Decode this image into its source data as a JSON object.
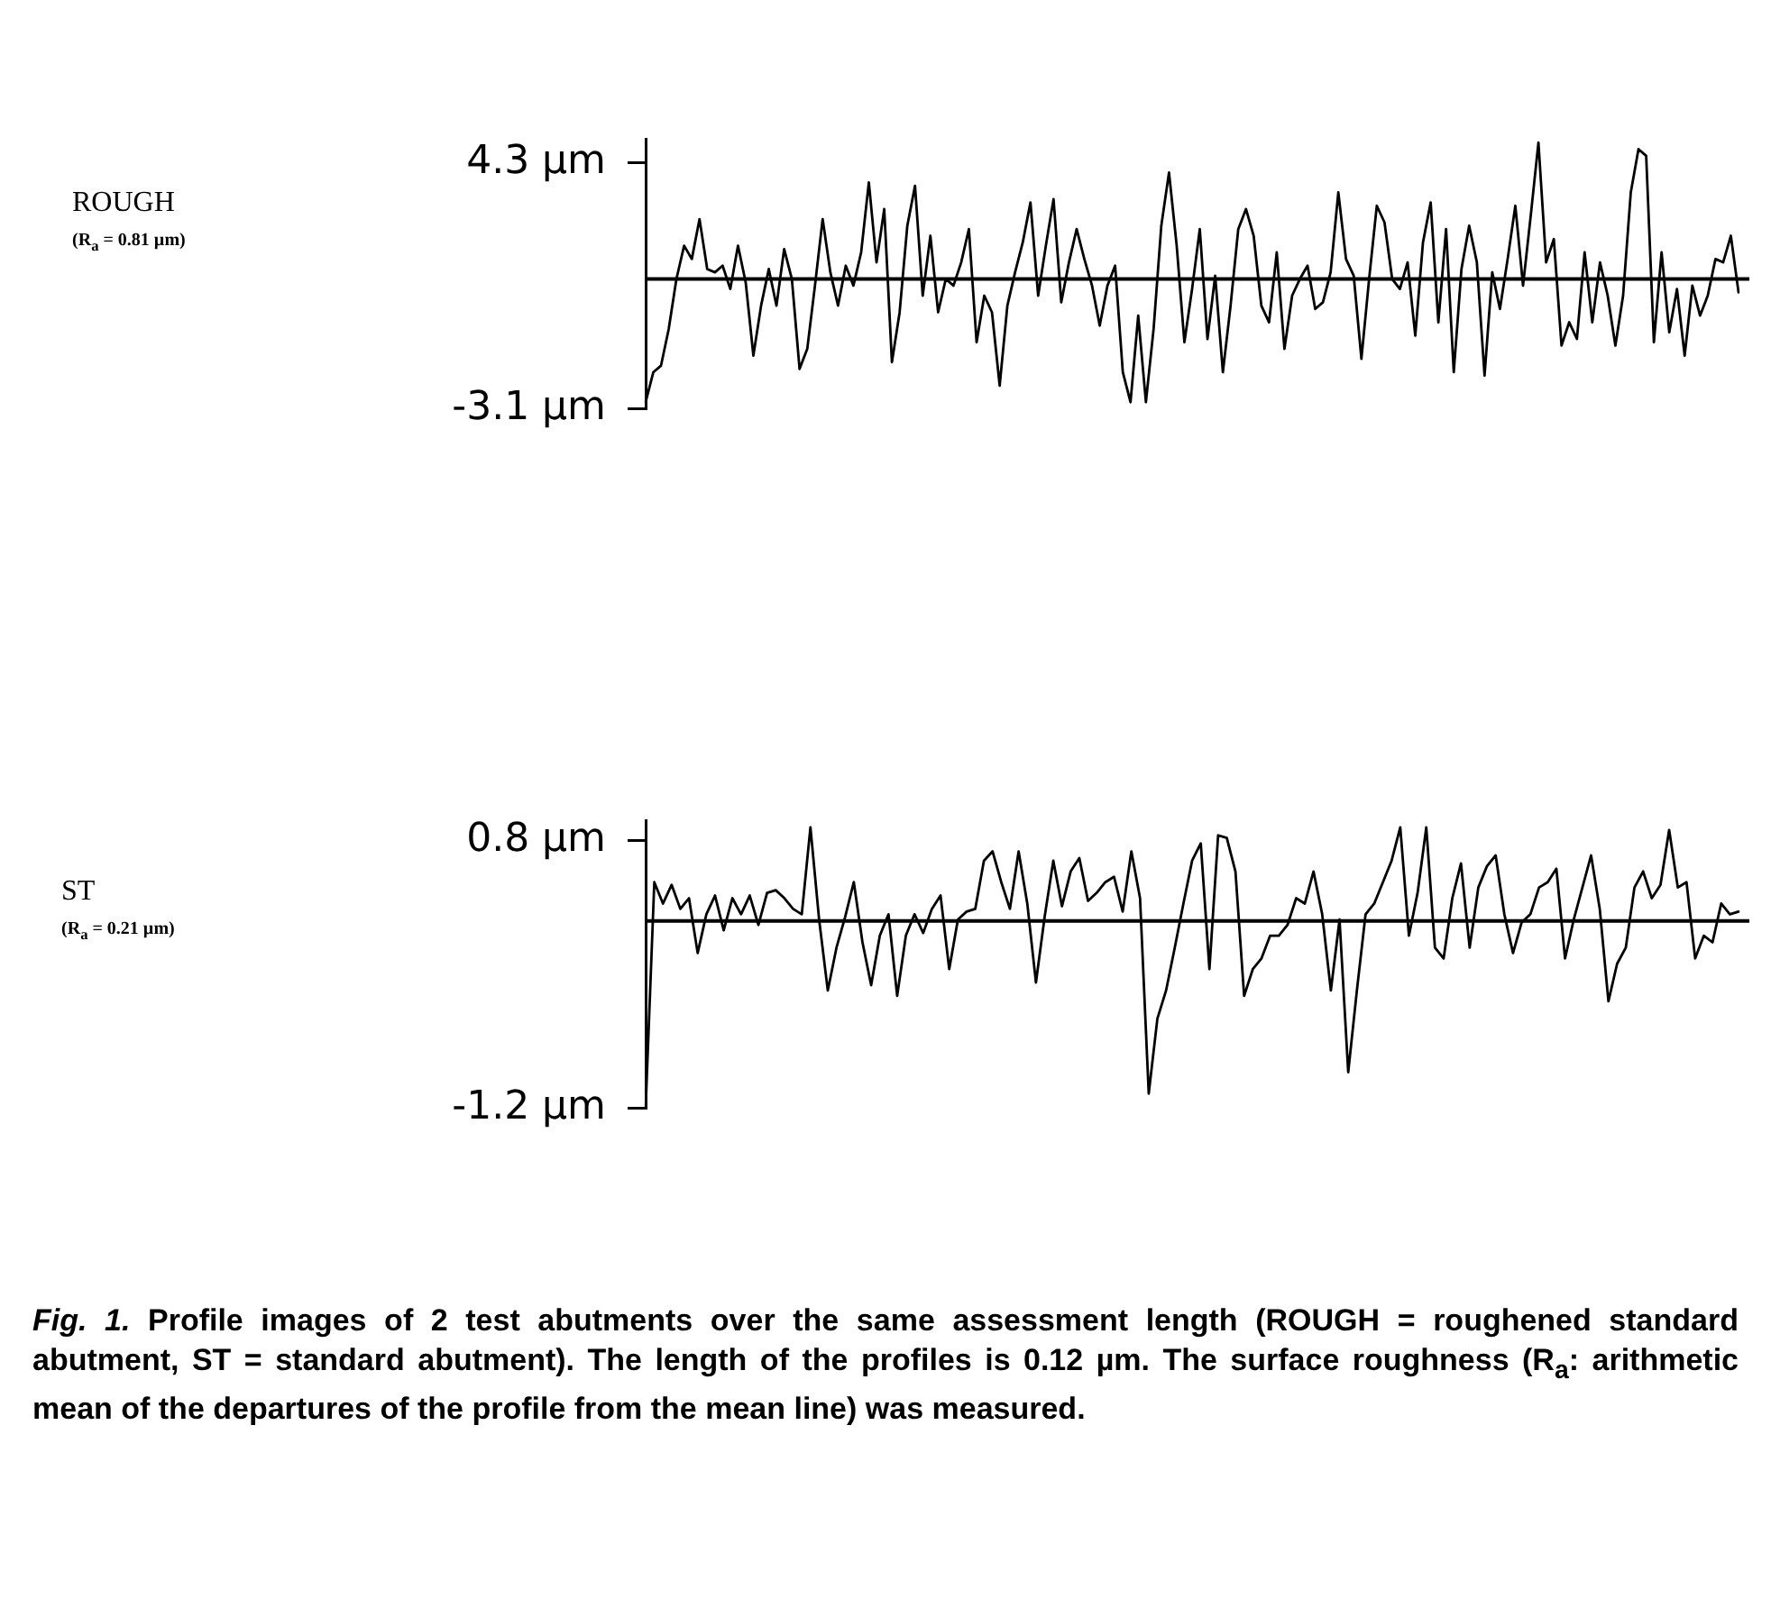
{
  "chart_data": [
    {
      "type": "line",
      "ylabel": "ROUGH\n(R$_{a}$ = 0.81 µm)",
      "categories": [
        null,
        null,
        null,
        null,
        null,
        null,
        null,
        null,
        null,
        null,
        null,
        null,
        null,
        null,
        null,
        null,
        null,
        null,
        null,
        null,
        null,
        null,
        null,
        null,
        null,
        null,
        null,
        null,
        null,
        null,
        null,
        null,
        null,
        null,
        null,
        null,
        null,
        null,
        null,
        null,
        null,
        null,
        null,
        null,
        null,
        null,
        null,
        null,
        null,
        null,
        null,
        null,
        null,
        null,
        null,
        null,
        null,
        null,
        null,
        null,
        null,
        null,
        null,
        null,
        null,
        null,
        null,
        null,
        null,
        null,
        null,
        null,
        null,
        null,
        null,
        null,
        null,
        null,
        null,
        null,
        null,
        null,
        null,
        null,
        null,
        null,
        null,
        null,
        null,
        null,
        null,
        null,
        null,
        null,
        null,
        null,
        null,
        null,
        null,
        null,
        null,
        null,
        null,
        null,
        null,
        null,
        null,
        null,
        null,
        null,
        null,
        null,
        null,
        null,
        null,
        null,
        null,
        null,
        null,
        null,
        null,
        null,
        null,
        null,
        null,
        null,
        null,
        null,
        null,
        null,
        null,
        null,
        null,
        null,
        null,
        null,
        null,
        null,
        null,
        null,
        null,
        null,
        null
      ],
      "values": [
        -2.9,
        -2.0,
        -1.8,
        -0.7,
        0.8,
        1.8,
        1.4,
        2.6,
        1.1,
        1.0,
        1.2,
        0.5,
        1.8,
        0.7,
        -1.5,
        0.0,
        1.1,
        0.0,
        1.7,
        0.8,
        -1.9,
        -1.3,
        0.6,
        2.6,
        1.0,
        0.0,
        1.2,
        0.6,
        1.6,
        3.7,
        1.3,
        2.9,
        -1.7,
        -0.2,
        2.4,
        3.6,
        0.3,
        2.1,
        -0.2,
        0.8,
        0.6,
        1.3,
        2.3,
        -1.1,
        0.3,
        -0.2,
        -2.4,
        0.0,
        1.0,
        1.9,
        3.1,
        0.3,
        1.8,
        3.2,
        0.1,
        1.3,
        2.3,
        1.4,
        0.6,
        -0.6,
        0.6,
        1.2,
        -2.0,
        -2.9,
        -0.3,
        -2.9,
        -0.7,
        2.4,
        4.0,
        1.8,
        -1.1,
        0.5,
        2.3,
        -1.0,
        0.9,
        -2.0,
        0.0,
        2.3,
        2.9,
        2.1,
        0.0,
        -0.5,
        1.6,
        -1.3,
        0.3,
        0.8,
        1.2,
        -0.1,
        0.1,
        1.0,
        3.4,
        1.4,
        0.9,
        -1.6,
        0.8,
        3.0,
        2.5,
        0.8,
        0.5,
        1.3,
        -0.9,
        1.9,
        3.1,
        -0.5,
        2.3,
        -2.0,
        1.1,
        2.4,
        1.3,
        -2.1,
        1.0,
        -0.1,
        1.4,
        3.0,
        0.6,
        2.7,
        4.9,
        1.3,
        2.0,
        -1.2,
        -0.5,
        -1.0,
        1.6,
        -0.5,
        1.3,
        0.3,
        -1.2,
        0.3,
        3.4,
        4.7,
        4.5,
        -1.1,
        1.6,
        -0.8,
        0.5,
        -1.5,
        0.6,
        -0.3,
        0.3,
        1.4,
        1.3,
        2.1,
        0.4
      ],
      "color": "#000000",
      "marker": "none",
      "ylim": [
        -3.1,
        5.0
      ],
      "yticks": [
        {
          "value": 4.3,
          "label": "4.3 µm"
        },
        {
          "value": -3.1,
          "label": "-3.1 µm"
        }
      ],
      "ref_lines": [
        {
          "axis": "y",
          "value": 0.8
        }
      ]
    },
    {
      "type": "line",
      "ylabel": "ST\n(R$_{a}$ = 0.21 µm)",
      "categories": [
        null,
        null,
        null,
        null,
        null,
        null,
        null,
        null,
        null,
        null,
        null,
        null,
        null,
        null,
        null,
        null,
        null,
        null,
        null,
        null,
        null,
        null,
        null,
        null,
        null,
        null,
        null,
        null,
        null,
        null,
        null,
        null,
        null,
        null,
        null,
        null,
        null,
        null,
        null,
        null,
        null,
        null,
        null,
        null,
        null,
        null,
        null,
        null,
        null,
        null,
        null,
        null,
        null,
        null,
        null,
        null,
        null,
        null,
        null,
        null,
        null,
        null,
        null,
        null,
        null,
        null,
        null,
        null,
        null,
        null,
        null,
        null,
        null,
        null,
        null,
        null,
        null,
        null,
        null,
        null,
        null,
        null,
        null,
        null,
        null,
        null,
        null,
        null,
        null,
        null,
        null,
        null,
        null,
        null,
        null,
        null,
        null,
        null,
        null,
        null,
        null,
        null,
        null,
        null,
        null,
        null,
        null,
        null,
        null,
        null,
        null,
        null,
        null,
        null,
        null,
        null,
        null,
        null,
        null,
        null,
        null,
        null,
        null,
        null,
        null,
        null,
        null
      ],
      "values": [
        -1.2,
        0.49,
        0.33,
        0.47,
        0.29,
        0.37,
        -0.04,
        0.25,
        0.39,
        0.13,
        0.37,
        0.25,
        0.39,
        0.17,
        0.41,
        0.43,
        0.37,
        0.29,
        0.25,
        0.9,
        0.21,
        -0.32,
        0.0,
        0.23,
        0.49,
        0.04,
        -0.28,
        0.09,
        0.25,
        -0.36,
        0.09,
        0.25,
        0.11,
        0.29,
        0.39,
        -0.16,
        0.21,
        0.27,
        0.29,
        0.65,
        0.72,
        0.49,
        0.29,
        0.72,
        0.33,
        -0.26,
        0.23,
        0.65,
        0.31,
        0.57,
        0.67,
        0.35,
        0.41,
        0.49,
        0.53,
        0.27,
        0.72,
        0.37,
        -1.09,
        -0.53,
        -0.32,
        0.0,
        0.33,
        0.65,
        0.78,
        -0.16,
        0.84,
        0.82,
        0.57,
        -0.36,
        -0.16,
        -0.08,
        0.09,
        0.09,
        0.17,
        0.37,
        0.33,
        0.57,
        0.25,
        -0.32,
        0.21,
        -0.93,
        -0.32,
        0.25,
        0.33,
        0.49,
        0.65,
        0.9,
        0.09,
        0.41,
        0.9,
        0.0,
        -0.08,
        0.37,
        0.63,
        0.0,
        0.45,
        0.61,
        0.69,
        0.25,
        -0.04,
        0.19,
        0.25,
        0.45,
        0.49,
        0.59,
        -0.08,
        0.21,
        0.45,
        0.69,
        0.29,
        -0.4,
        -0.12,
        0.0,
        0.45,
        0.57,
        0.37,
        0.47,
        0.88,
        0.45,
        0.49,
        -0.08,
        0.09,
        0.04,
        0.33,
        0.25,
        0.27
      ],
      "color": "#000000",
      "marker": "none",
      "ylim": [
        -1.2,
        0.95
      ],
      "yticks": [
        {
          "value": 0.8,
          "label": "0.8 µm"
        },
        {
          "value": -1.2,
          "label": "-1.2 µm"
        }
      ],
      "ref_lines": [
        {
          "axis": "y",
          "value": 0.2
        }
      ],
      "annotations": [
        "Fig. 1.",
        "Profile images of 2 test abutments over the same assessment length (ROUGH = roughened standard abutment, ST = standard abutment). The length of the profiles is 0.12 µm. The surface roughness (R$_{a}$: arithmetic mean of the departures of the profile from the mean line) was measured."
      ]
    }
  ]
}
